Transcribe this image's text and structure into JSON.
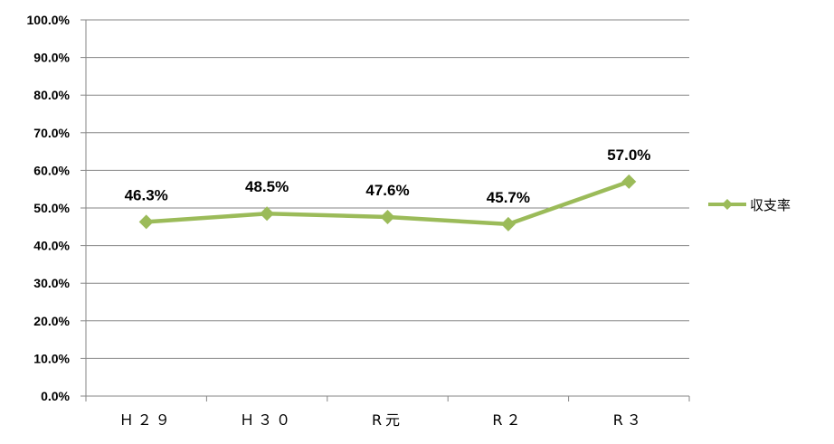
{
  "chart_data": {
    "type": "line",
    "categories": [
      "Ｈ２９",
      "Ｈ３０",
      "R元",
      "R２",
      "R３"
    ],
    "series": [
      {
        "name": "収支率",
        "values": [
          46.3,
          48.5,
          47.6,
          45.7,
          57.0
        ],
        "labels": [
          "46.3%",
          "48.5%",
          "47.6%",
          "45.7%",
          "57.0%"
        ],
        "color": "#9BBB59"
      }
    ],
    "yticks": [
      "0.0%",
      "10.0%",
      "20.0%",
      "30.0%",
      "40.0%",
      "50.0%",
      "60.0%",
      "70.0%",
      "80.0%",
      "90.0%",
      "100.0%"
    ],
    "ylim": [
      0,
      100
    ],
    "title": "",
    "xlabel": "",
    "ylabel": "",
    "grid": true,
    "legend_position": "right",
    "gridline_color": "#868686"
  }
}
